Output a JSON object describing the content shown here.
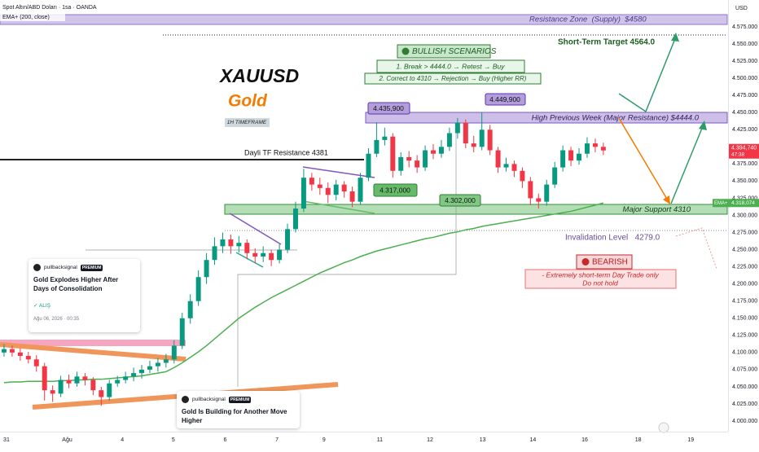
{
  "header": {
    "symbol": "Spot Altın/ABD Doları · 1sa · OANDA",
    "indicator": "EMA+ (200, close)",
    "currency": "USD"
  },
  "chart_data": {
    "type": "candlestick",
    "x": [
      0,
      1,
      2,
      3,
      4,
      5,
      6,
      7,
      8,
      9,
      10,
      11,
      12,
      13,
      14,
      15,
      16,
      17,
      18,
      19,
      20,
      21,
      22,
      23,
      24,
      25,
      26,
      27,
      28,
      29,
      30,
      31,
      32,
      33,
      34,
      35,
      36,
      37,
      38,
      39,
      40,
      41,
      42,
      43,
      44,
      45,
      46,
      47,
      48,
      49,
      50,
      51,
      52,
      53,
      54,
      55,
      56,
      57,
      58,
      59,
      60,
      61,
      62,
      63,
      64,
      65,
      66,
      67,
      68,
      69,
      70,
      71,
      72,
      73,
      74
    ],
    "open": [
      4100,
      4105,
      4100,
      4095,
      4090,
      4080,
      4045,
      4040,
      4060,
      4055,
      4065,
      4060,
      4045,
      4035,
      4055,
      4060,
      4065,
      4070,
      4075,
      4080,
      4085,
      4090,
      4110,
      4150,
      4175,
      4210,
      4235,
      4255,
      4265,
      4255,
      4260,
      4245,
      4240,
      4245,
      4235,
      4250,
      4280,
      4310,
      4355,
      4345,
      4340,
      4330,
      4345,
      4335,
      4320,
      4355,
      4390,
      4410,
      4415,
      4365,
      4385,
      4380,
      4370,
      4395,
      4390,
      4400,
      4420,
      4435,
      4405,
      4400,
      4425,
      4395,
      4370,
      4375,
      4365,
      4350,
      4325,
      4320,
      4345,
      4370,
      4395,
      4380,
      4390,
      4405,
      4400
    ],
    "high": [
      4112,
      4110,
      4106,
      4101,
      4096,
      4085,
      4052,
      4066,
      4068,
      4072,
      4070,
      4064,
      4050,
      4060,
      4066,
      4072,
      4078,
      4082,
      4088,
      4092,
      4098,
      4118,
      4158,
      4185,
      4220,
      4245,
      4268,
      4275,
      4272,
      4270,
      4265,
      4252,
      4255,
      4250,
      4258,
      4288,
      4320,
      4368,
      4362,
      4355,
      4348,
      4352,
      4350,
      4342,
      4362,
      4398,
      4435.9,
      4428,
      4420,
      4392,
      4394,
      4388,
      4402,
      4404,
      4410,
      4428,
      4442,
      4440,
      4416,
      4449.9,
      4432,
      4400,
      4384,
      4380,
      4370,
      4356,
      4332,
      4352,
      4378,
      4402,
      4400,
      4398,
      4414,
      4412,
      4406
    ],
    "low": [
      4094,
      4094,
      4088,
      4084,
      4072,
      4030,
      4028,
      4035,
      4048,
      4050,
      4052,
      4038,
      4022,
      4030,
      4050,
      4055,
      4058,
      4062,
      4070,
      4072,
      4078,
      4084,
      4105,
      4142,
      4168,
      4200,
      4228,
      4245,
      4244,
      4246,
      4236,
      4230,
      4232,
      4226,
      4230,
      4245,
      4275,
      4305,
      4336,
      4330,
      4318,
      4322,
      4326,
      4312,
      4316,
      4350,
      4385,
      4402,
      4355,
      4358,
      4370,
      4362,
      4365,
      4382,
      4384,
      4394,
      4412,
      4398,
      4392,
      4395,
      4388,
      4362,
      4364,
      4356,
      4340,
      4315,
      4310,
      4314,
      4340,
      4364,
      4372,
      4374,
      4384,
      4392,
      4388
    ],
    "close": [
      4105,
      4100,
      4095,
      4090,
      4080,
      4045,
      4040,
      4060,
      4055,
      4065,
      4060,
      4045,
      4035,
      4055,
      4060,
      4065,
      4070,
      4075,
      4080,
      4085,
      4090,
      4110,
      4150,
      4175,
      4210,
      4235,
      4255,
      4265,
      4255,
      4260,
      4245,
      4240,
      4245,
      4235,
      4250,
      4280,
      4310,
      4355,
      4345,
      4340,
      4330,
      4345,
      4335,
      4320,
      4355,
      4390,
      4410,
      4415,
      4365,
      4385,
      4380,
      4370,
      4395,
      4390,
      4400,
      4420,
      4435,
      4405,
      4400,
      4425,
      4395,
      4370,
      4375,
      4365,
      4350,
      4325,
      4320,
      4345,
      4370,
      4395,
      4380,
      4390,
      4405,
      4400,
      4394.74
    ],
    "close_last_label": "4.394,740",
    "countdown": "47:38",
    "up_color": "#089981",
    "down_color": "#f23645",
    "series": [
      {
        "name": "EMA+",
        "color": "#4caf50",
        "last_label": "4.318,074",
        "values": [
          4056,
          4057,
          4057,
          4058,
          4058,
          4058,
          4058,
          4059,
          4059,
          4060,
          4060,
          4061,
          4061,
          4062,
          4063,
          4064,
          4065,
          4066,
          4068,
          4070,
          4072,
          4078,
          4085,
          4093,
          4101,
          4110,
          4120,
          4130,
          4140,
          4150,
          4158,
          4166,
          4173,
          4180,
          4186,
          4192,
          4198,
          4204,
          4210,
          4216,
          4221,
          4226,
          4231,
          4235,
          4240,
          4244,
          4248,
          4251,
          4254,
          4257,
          4260,
          4263,
          4266,
          4268,
          4271,
          4274,
          4276,
          4279,
          4281,
          4284,
          4286,
          4288,
          4290,
          4292,
          4294,
          4296,
          4298,
          4300,
          4302,
          4304,
          4306,
          4309,
          4312,
          4315,
          4318.074
        ]
      }
    ],
    "xlim": [
      -0.5,
      89.5
    ],
    "xticks": [
      {
        "value": 0.3,
        "label": "31"
      },
      {
        "value": 7.8,
        "label": "Ağu"
      },
      {
        "value": 14.6,
        "label": "4"
      },
      {
        "value": 20.9,
        "label": "5"
      },
      {
        "value": 27.3,
        "label": "6"
      },
      {
        "value": 33.7,
        "label": "7"
      },
      {
        "value": 39.5,
        "label": "9"
      },
      {
        "value": 46.4,
        "label": "11"
      },
      {
        "value": 52.6,
        "label": "12"
      },
      {
        "value": 59.1,
        "label": "13"
      },
      {
        "value": 65.3,
        "label": "14"
      },
      {
        "value": 71.7,
        "label": "16"
      },
      {
        "value": 78.3,
        "label": "18"
      },
      {
        "value": 84.8,
        "label": "19"
      }
    ],
    "ylim": [
      3984.6,
      4614.2
    ],
    "yticks": [
      {
        "value": 4575,
        "label": "4.575.000"
      },
      {
        "value": 4550,
        "label": "4.550.000"
      },
      {
        "value": 4525,
        "label": "4.525.000"
      },
      {
        "value": 4500,
        "label": "4.500.000"
      },
      {
        "value": 4475,
        "label": "4.475.000"
      },
      {
        "value": 4450,
        "label": "4.450.000"
      },
      {
        "value": 4425,
        "label": "4.425.000"
      },
      {
        "value": 4400,
        "label": "4.400.000"
      },
      {
        "value": 4375,
        "label": "4.375.000"
      },
      {
        "value": 4350,
        "label": "4.350.000"
      },
      {
        "value": 4325,
        "label": "4.325.000"
      },
      {
        "value": 4300,
        "label": "4.300.000"
      },
      {
        "value": 4275,
        "label": "4.275.000"
      },
      {
        "value": 4250,
        "label": "4.250.000"
      },
      {
        "value": 4225,
        "label": "4.225.000"
      },
      {
        "value": 4200,
        "label": "4.200.000"
      },
      {
        "value": 4175,
        "label": "4.175.000"
      },
      {
        "value": 4150,
        "label": "4.150.000"
      },
      {
        "value": 4125,
        "label": "4.125.000"
      },
      {
        "value": 4100,
        "label": "4.100.000"
      },
      {
        "value": 4075,
        "label": "4.075.000"
      },
      {
        "value": 4050,
        "label": "4.050.000"
      },
      {
        "value": 4025,
        "label": "4.025.000"
      },
      {
        "value": 4000,
        "label": "4.000.000"
      }
    ],
    "grid": false
  },
  "annotations": {
    "title": "XAUUSD",
    "subtitle": "Gold",
    "timeframe": "1H TIMEFRAME",
    "resistance_zone": "Resistance Zone  (Supply)  $4580",
    "target": "Short-Term Target 4564.0",
    "bullish": {
      "title": "BULLISH SCENARIOS",
      "lines": [
        "1. Break > 4444.0 → Retest → Buy",
        "2. Correct to 4310 → Rejection → Buy (Higher RR)"
      ]
    },
    "high_prev_week": "High Previous Week (Major Resistance) $4444.0",
    "daily_resistance": "Dayli TF Resistance 4381",
    "major_support": "Major Support 4310",
    "invalidation": "Invalidation Level   4279.0",
    "bearish": {
      "title": "BEARISH",
      "lines": [
        "- Extremely short-term Day Trade only",
        "Do not hold"
      ]
    },
    "callouts": [
      "4.435,900",
      "4.449,900",
      "4.317,000",
      "4.302,000"
    ]
  },
  "news": [
    {
      "author": "pullbacksignal",
      "badge": "PREMIUM",
      "headline": "Gold Explodes Higher After Days of Consolidation",
      "signal": "ALIŞ",
      "date": "Ağu 06, 2026 · 00:35"
    },
    {
      "author": "pullbacksignal",
      "badge": "PREMIUM",
      "headline": "Gold Is Building for Another Move Higher"
    }
  ]
}
